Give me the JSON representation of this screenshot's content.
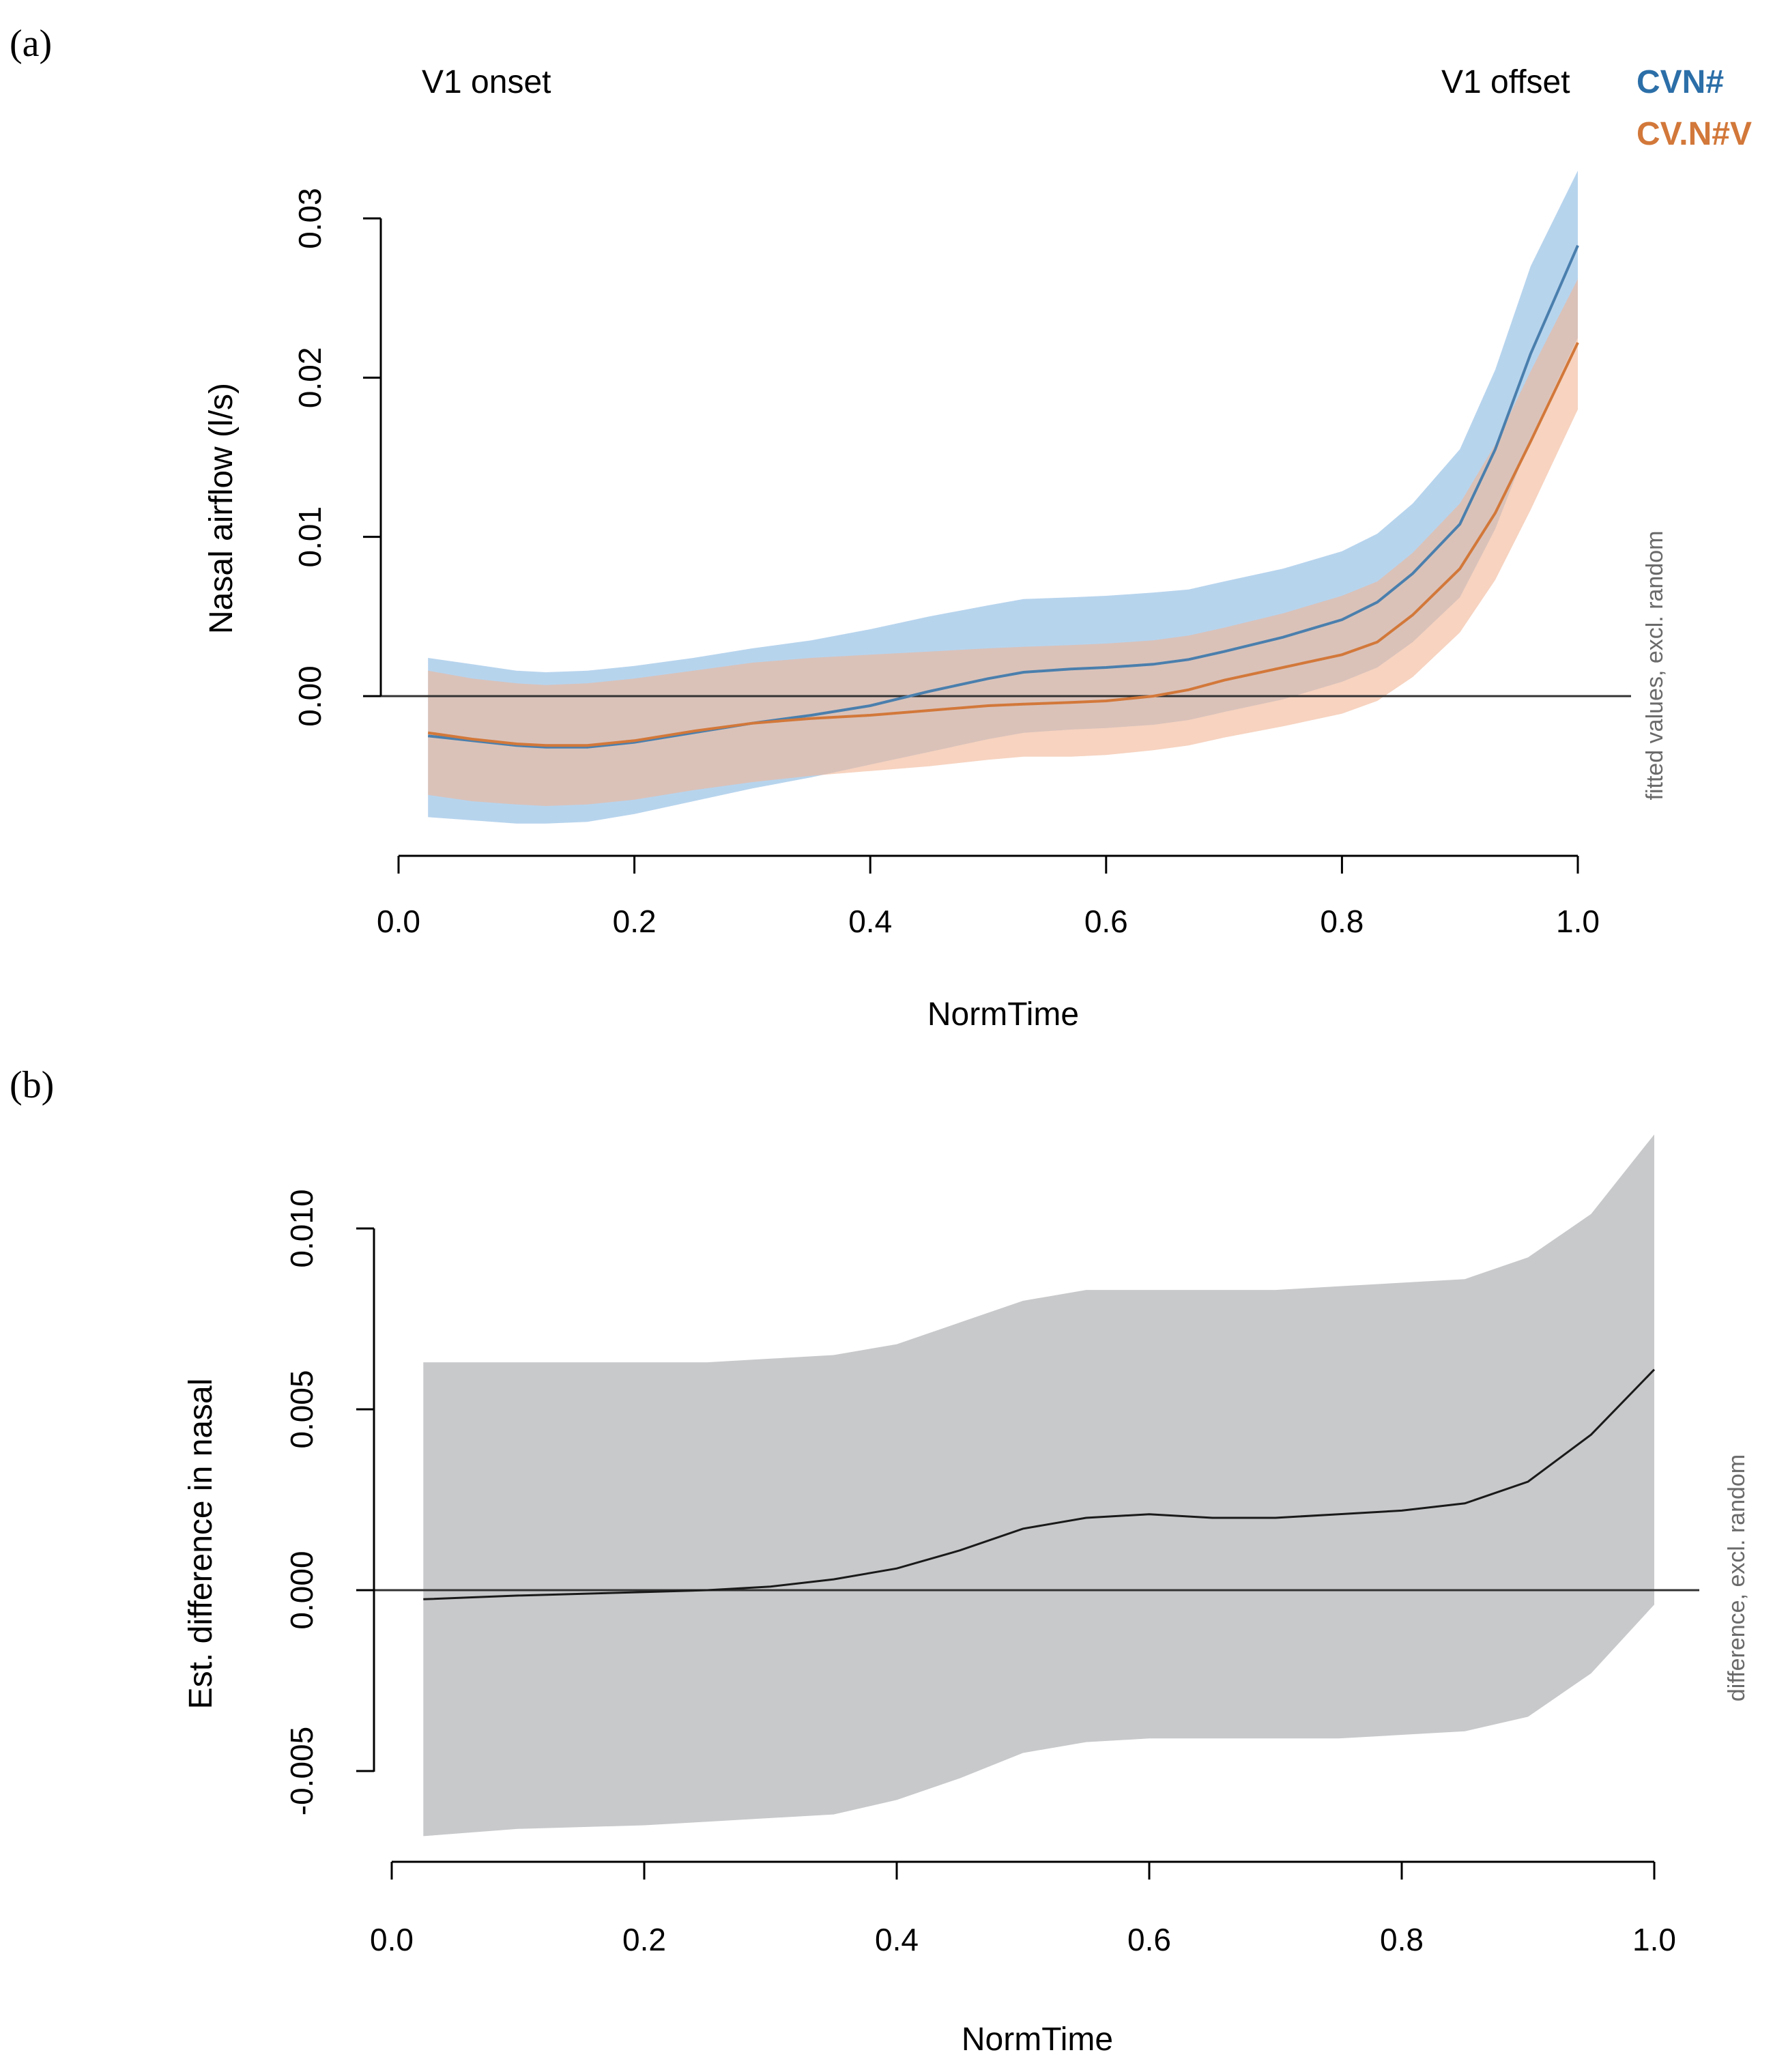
{
  "chart_data": [
    {
      "type": "line",
      "panel_label": "(a)",
      "xlabel": "NormTime",
      "ylabel": "Nasal airflow (l/s)",
      "side_note": "fitted values, excl. random",
      "annotations": [
        "V1 onset",
        "V1 offset"
      ],
      "xlim": [
        0.0,
        1.0
      ],
      "ylim": [
        -0.01,
        0.03
      ],
      "xticks": [
        "0.0",
        "0.2",
        "0.4",
        "0.6",
        "0.8",
        "1.0"
      ],
      "yticks": [
        "0.00",
        "0.01",
        "0.02",
        "0.03"
      ],
      "reference_line": 0,
      "legend": [
        {
          "label": "CVN#",
          "color": "#2c6fa8"
        },
        {
          "label": "CV.N#V",
          "color": "#d2783a"
        }
      ],
      "x": [
        0.025,
        0.0625,
        0.1,
        0.125,
        0.16,
        0.2,
        0.25,
        0.3,
        0.35,
        0.4,
        0.45,
        0.5,
        0.53,
        0.57,
        0.6,
        0.64,
        0.67,
        0.7,
        0.75,
        0.8,
        0.83,
        0.86,
        0.9,
        0.93,
        0.96,
        1.0
      ],
      "series": [
        {
          "name": "CVN#",
          "color": "#4a7fad",
          "band_color": "#aacdea",
          "values": [
            -0.0025,
            -0.0028,
            -0.0031,
            -0.0032,
            -0.0032,
            -0.0029,
            -0.0023,
            -0.0017,
            -0.0012,
            -0.0006,
            0.0003,
            0.0011,
            0.0015,
            0.0017,
            0.0018,
            0.002,
            0.0023,
            0.0028,
            0.0037,
            0.0048,
            0.0059,
            0.0077,
            0.0108,
            0.0155,
            0.0215,
            0.0283
          ],
          "lower": [
            -0.0076,
            -0.0078,
            -0.008,
            -0.008,
            -0.0079,
            -0.0074,
            -0.0066,
            -0.0058,
            -0.0051,
            -0.0043,
            -0.0035,
            -0.0027,
            -0.0023,
            -0.0021,
            -0.002,
            -0.0018,
            -0.0015,
            -0.001,
            -0.0002,
            0.0009,
            0.0018,
            0.0034,
            0.0062,
            0.0105,
            0.0162,
            0.0225
          ],
          "upper": [
            0.0024,
            0.002,
            0.0016,
            0.0015,
            0.0016,
            0.0019,
            0.0024,
            0.003,
            0.0035,
            0.0042,
            0.005,
            0.0057,
            0.0061,
            0.0062,
            0.0063,
            0.0065,
            0.0067,
            0.0072,
            0.008,
            0.0091,
            0.0102,
            0.0121,
            0.0155,
            0.0205,
            0.027,
            0.033
          ]
        },
        {
          "name": "CV.N#V",
          "color": "#d2783a",
          "band_color": "#f2b596",
          "values": [
            -0.0023,
            -0.0027,
            -0.003,
            -0.0031,
            -0.0031,
            -0.0028,
            -0.0022,
            -0.0017,
            -0.0014,
            -0.0012,
            -0.0009,
            -0.0006,
            -0.0005,
            -0.0004,
            -0.0003,
            0.0,
            0.0004,
            0.001,
            0.0018,
            0.0026,
            0.0034,
            0.0051,
            0.008,
            0.0115,
            0.016,
            0.0222
          ],
          "lower": [
            -0.0062,
            -0.0066,
            -0.0068,
            -0.0069,
            -0.0068,
            -0.0065,
            -0.0059,
            -0.0054,
            -0.005,
            -0.0047,
            -0.0044,
            -0.004,
            -0.0038,
            -0.0038,
            -0.0037,
            -0.0034,
            -0.0031,
            -0.0026,
            -0.0019,
            -0.0011,
            -0.0003,
            0.0012,
            0.004,
            0.0073,
            0.0117,
            0.018
          ],
          "upper": [
            0.0016,
            0.0011,
            0.0008,
            0.0007,
            0.0008,
            0.0011,
            0.0016,
            0.0021,
            0.0024,
            0.0026,
            0.0028,
            0.003,
            0.0031,
            0.0032,
            0.0033,
            0.0035,
            0.0038,
            0.0043,
            0.0052,
            0.0063,
            0.0072,
            0.009,
            0.0121,
            0.0158,
            0.0204,
            0.0262
          ]
        }
      ]
    },
    {
      "type": "line",
      "panel_label": "(b)",
      "xlabel": "NormTime",
      "ylabel": "Est. difference in nasal",
      "side_note": "difference, excl. random",
      "xlim": [
        0.0,
        1.0
      ],
      "ylim": [
        -0.005,
        0.01
      ],
      "xticks": [
        "0.0",
        "0.2",
        "0.4",
        "0.6",
        "0.8",
        "1.0"
      ],
      "yticks": [
        "-0.005",
        "0.000",
        "0.005",
        "0.010"
      ],
      "reference_line": 0,
      "x": [
        0.025,
        0.1,
        0.2,
        0.25,
        0.3,
        0.35,
        0.4,
        0.45,
        0.5,
        0.55,
        0.6,
        0.65,
        0.7,
        0.75,
        0.8,
        0.85,
        0.9,
        0.95,
        1.0
      ],
      "series": [
        {
          "name": "difference",
          "color": "#1a1a1a",
          "band_color": "#c8c9cb",
          "values": [
            -0.00025,
            -0.00015,
            -5e-05,
            0.0,
            0.0001,
            0.0003,
            0.0006,
            0.0011,
            0.0017,
            0.002,
            0.0021,
            0.002,
            0.002,
            0.0021,
            0.0022,
            0.0024,
            0.003,
            0.0043,
            0.0061
          ],
          "lower": [
            -0.0068,
            -0.0066,
            -0.0065,
            -0.0064,
            -0.0063,
            -0.0062,
            -0.0058,
            -0.0052,
            -0.0045,
            -0.0042,
            -0.0041,
            -0.0041,
            -0.0041,
            -0.0041,
            -0.004,
            -0.0039,
            -0.0035,
            -0.0023,
            -0.0004
          ],
          "upper": [
            0.0063,
            0.0063,
            0.0063,
            0.0063,
            0.0064,
            0.0065,
            0.0068,
            0.0074,
            0.008,
            0.0083,
            0.0083,
            0.0083,
            0.0083,
            0.0084,
            0.0085,
            0.0086,
            0.0092,
            0.0104,
            0.0126
          ]
        }
      ]
    }
  ]
}
